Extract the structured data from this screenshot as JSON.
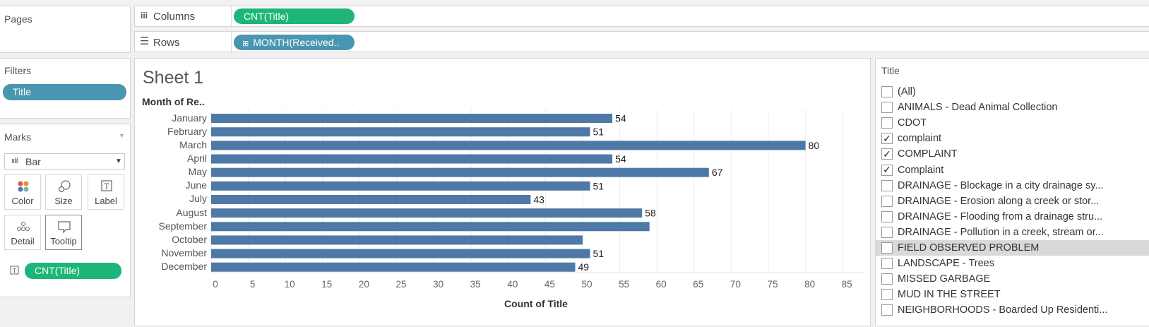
{
  "pages": {
    "label": "Pages"
  },
  "shelves": {
    "columns_label": "Columns",
    "rows_label": "Rows",
    "columns_pill": "CNT(Title)",
    "rows_pill": "MONTH(Received.."
  },
  "filters": {
    "label": "Filters",
    "pill": "Title"
  },
  "marks": {
    "label": "Marks",
    "type": "Bar",
    "buttons": [
      {
        "label": "Color"
      },
      {
        "label": "Size"
      },
      {
        "label": "Label"
      },
      {
        "label": "Detail"
      },
      {
        "label": "Tooltip"
      }
    ],
    "field_pill": "CNT(Title)"
  },
  "sheet": {
    "title": "Sheet 1",
    "row_header": "Month of Re.."
  },
  "chart_data": {
    "type": "bar",
    "orientation": "horizontal",
    "categories": [
      "January",
      "February",
      "March",
      "April",
      "May",
      "June",
      "July",
      "August",
      "September",
      "October",
      "November",
      "December"
    ],
    "values": [
      54,
      51,
      80,
      54,
      67,
      51,
      43,
      58,
      59,
      50,
      51,
      49
    ],
    "data_labels": [
      "54",
      "51",
      "80",
      "54",
      "67",
      "51",
      "43",
      "58",
      "",
      "",
      "51",
      "49"
    ],
    "xlabel": "Count of Title",
    "xlim": [
      0,
      87
    ],
    "xticks": [
      0,
      5,
      10,
      15,
      20,
      25,
      30,
      35,
      40,
      45,
      50,
      55,
      60,
      65,
      70,
      75,
      80,
      85
    ],
    "color": "#4e79a7",
    "grid": true
  },
  "title_filter": {
    "label": "Title",
    "items": [
      {
        "label": "(All)",
        "checked": false
      },
      {
        "label": "ANIMALS - Dead Animal Collection",
        "checked": false
      },
      {
        "label": "CDOT",
        "checked": false
      },
      {
        "label": "complaint",
        "checked": true
      },
      {
        "label": "COMPLAINT",
        "checked": true
      },
      {
        "label": "Complaint",
        "checked": true
      },
      {
        "label": "DRAINAGE - Blockage in a city drainage sy...",
        "checked": false
      },
      {
        "label": "DRAINAGE - Erosion along a creek or stor...",
        "checked": false
      },
      {
        "label": "DRAINAGE - Flooding from a drainage stru...",
        "checked": false
      },
      {
        "label": "DRAINAGE - Pollution in a creek, stream or...",
        "checked": false
      },
      {
        "label": "FIELD OBSERVED PROBLEM",
        "checked": false,
        "highlighted": true
      },
      {
        "label": "LANDSCAPE - Trees",
        "checked": false
      },
      {
        "label": "MISSED GARBAGE",
        "checked": false
      },
      {
        "label": "MUD IN THE STREET",
        "checked": false
      },
      {
        "label": "NEIGHBORHOODS - Boarded Up Residenti...",
        "checked": false
      }
    ]
  }
}
